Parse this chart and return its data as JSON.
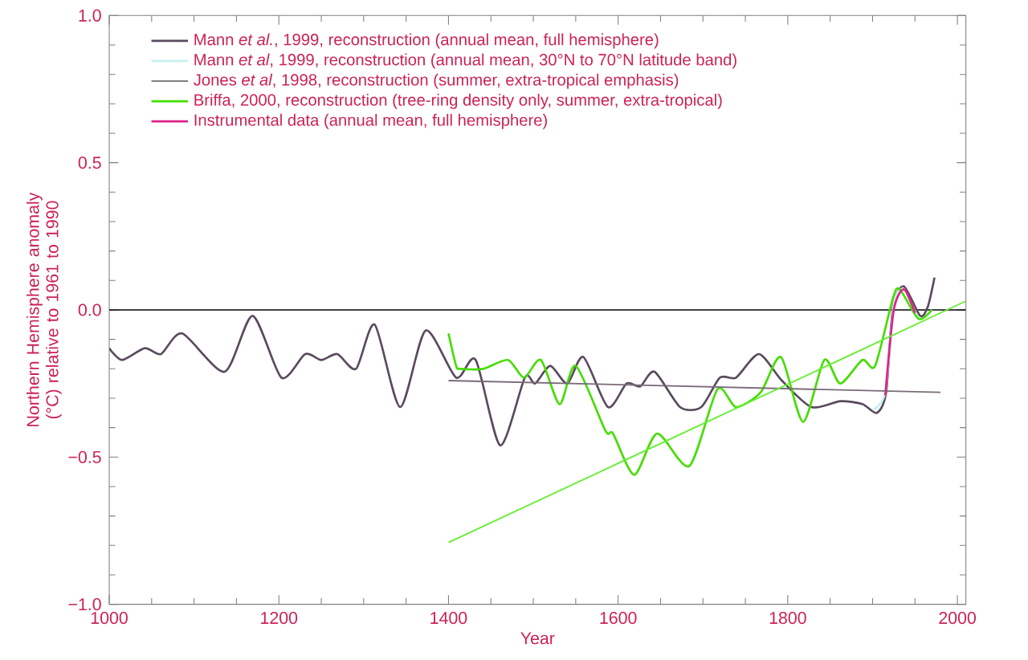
{
  "chart_data": {
    "type": "line",
    "xlabel": "Year",
    "ylabel": "Northern Hemisphere anomaly (°C) relative to 1961 to 1990",
    "xlim": [
      1000,
      2010
    ],
    "ylim": [
      -1,
      1
    ],
    "xticks": [
      1000,
      1200,
      1400,
      1600,
      1800,
      2000
    ],
    "yticks": [
      {
        "value": -1,
        "label": "−1.0"
      },
      {
        "value": -0.5,
        "label": "−0.5"
      },
      {
        "value": 0,
        "label": "0.0"
      },
      {
        "value": 0.5,
        "label": "0.5"
      },
      {
        "value": 1,
        "label": "1.0"
      }
    ],
    "grid": false,
    "legend": "top left",
    "marker": "none",
    "line_style": "solid",
    "ref_lines": [
      {
        "axis": "y",
        "value": 0,
        "color": "#000000"
      }
    ],
    "series": [
      {
        "name": "Mann *et al.*, 1999, reconstruction (annual mean, full hemisphere)",
        "color": "#5a4a5e",
        "x": [
          1000,
          1015,
          1042,
          1061,
          1086,
          1136,
          1169,
          1203,
          1231,
          1250,
          1269,
          1291,
          1313,
          1343,
          1373,
          1409,
          1432,
          1461,
          1490,
          1502,
          1520,
          1540,
          1559,
          1588,
          1610,
          1626,
          1643,
          1673,
          1698,
          1720,
          1739,
          1766,
          1793,
          1828,
          1862,
          1888,
          1905,
          1916,
          1924,
          1937,
          1956,
          1965,
          1973
        ],
        "values": [
          -0.13,
          -0.17,
          -0.13,
          -0.15,
          -0.08,
          -0.21,
          -0.02,
          -0.23,
          -0.15,
          -0.17,
          -0.15,
          -0.2,
          -0.05,
          -0.33,
          -0.07,
          -0.23,
          -0.17,
          -0.46,
          -0.23,
          -0.25,
          -0.19,
          -0.25,
          -0.16,
          -0.33,
          -0.25,
          -0.26,
          -0.21,
          -0.33,
          -0.33,
          -0.23,
          -0.23,
          -0.15,
          -0.24,
          -0.33,
          -0.31,
          -0.32,
          -0.35,
          -0.28,
          0.01,
          0.08,
          -0.02,
          0.01,
          0.11
        ]
      },
      {
        "name": "Mann *et al*, 1999, reconstruction (annual mean, 30°N to 70°N latitude band)",
        "color": "#c8f0f0",
        "x": [
          1900,
          1915,
          1925,
          1937,
          1955,
          1970
        ],
        "values": [
          -0.34,
          -0.28,
          0.02,
          0.07,
          -0.03,
          0
        ]
      },
      {
        "name": "Jones *et al*, 1998, reconstruction (summer, extra-tropical emphasis)"
      },
      {
        "name": "Briffa, 2000, reconstruction (tree-ring density only, summer, extra-tropical)",
        "color": "#44dd00",
        "x": [
          1400,
          1409,
          1414,
          1441,
          1470,
          1489,
          1509,
          1531,
          1550,
          1585,
          1594,
          1619,
          1646,
          1684,
          1717,
          1739,
          1768,
          1792,
          1818,
          1843,
          1862,
          1888,
          1903,
          1924,
          1932,
          1954,
          1970
        ],
        "values": [
          -0.08,
          -0.19,
          -0.2,
          -0.2,
          -0.17,
          -0.23,
          -0.17,
          -0.32,
          -0.19,
          -0.41,
          -0.42,
          -0.56,
          -0.42,
          -0.53,
          -0.27,
          -0.33,
          -0.28,
          -0.16,
          -0.38,
          -0.17,
          -0.25,
          -0.17,
          -0.19,
          0.04,
          0.07,
          -0.03,
          0
        ]
      },
      {
        "name": "Instrumental data (annual mean, full hemisphere)",
        "color": "#dd2288",
        "x": [
          1915,
          1925,
          1937,
          1950
        ],
        "values": [
          -0.29,
          0,
          0.07,
          -0.01
        ]
      },
      {
        "color": "#7a6a7a",
        "x": [
          1400,
          1980
        ],
        "values": [
          -0.24,
          -0.28
        ]
      },
      {
        "color": "#66ee33",
        "x": [
          1400,
          2010
        ],
        "values": [
          -0.79,
          0.03
        ]
      }
    ]
  }
}
